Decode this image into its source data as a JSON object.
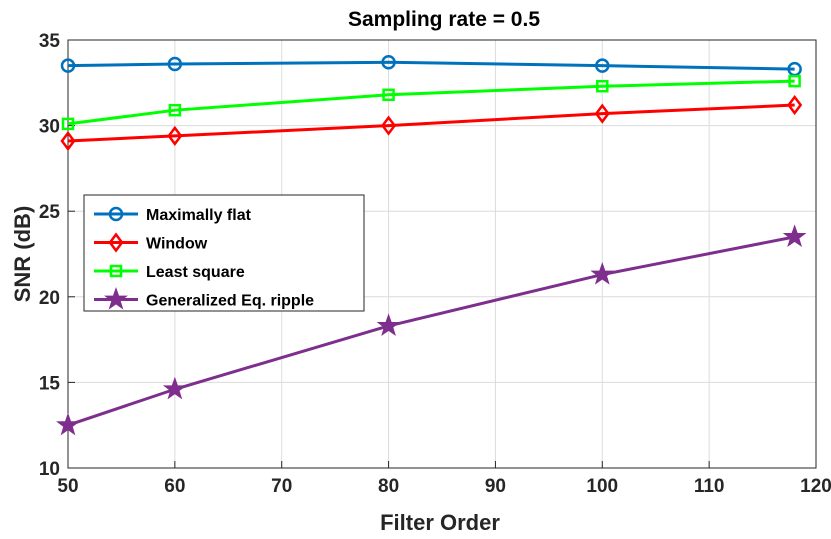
{
  "chart_data": {
    "type": "line",
    "title": "Sampling rate = 0.5",
    "xlabel": "Filter Order",
    "ylabel": "SNR (dB)",
    "xlim": [
      50,
      120
    ],
    "ylim": [
      10,
      35
    ],
    "xticks": [
      50,
      60,
      70,
      80,
      90,
      100,
      110,
      120
    ],
    "yticks": [
      10,
      15,
      20,
      25,
      30,
      35
    ],
    "grid": true,
    "legend_position": "center-left",
    "x": [
      50,
      60,
      80,
      100,
      118
    ],
    "series": [
      {
        "name": "Maximally flat",
        "values": [
          33.5,
          33.6,
          33.7,
          33.5,
          33.3
        ],
        "color": "#0072BD",
        "marker": "circle"
      },
      {
        "name": "Window",
        "values": [
          29.1,
          29.4,
          30.0,
          30.7,
          31.2
        ],
        "color": "#FF0000",
        "marker": "diamond"
      },
      {
        "name": "Least square",
        "values": [
          30.1,
          30.9,
          31.8,
          32.3,
          32.6
        ],
        "color": "#00FF00",
        "marker": "square"
      },
      {
        "name": "Generalized Eq. ripple",
        "values": [
          12.5,
          14.6,
          18.3,
          21.3,
          23.5
        ],
        "color": "#7E2F8E",
        "marker": "star"
      }
    ]
  }
}
